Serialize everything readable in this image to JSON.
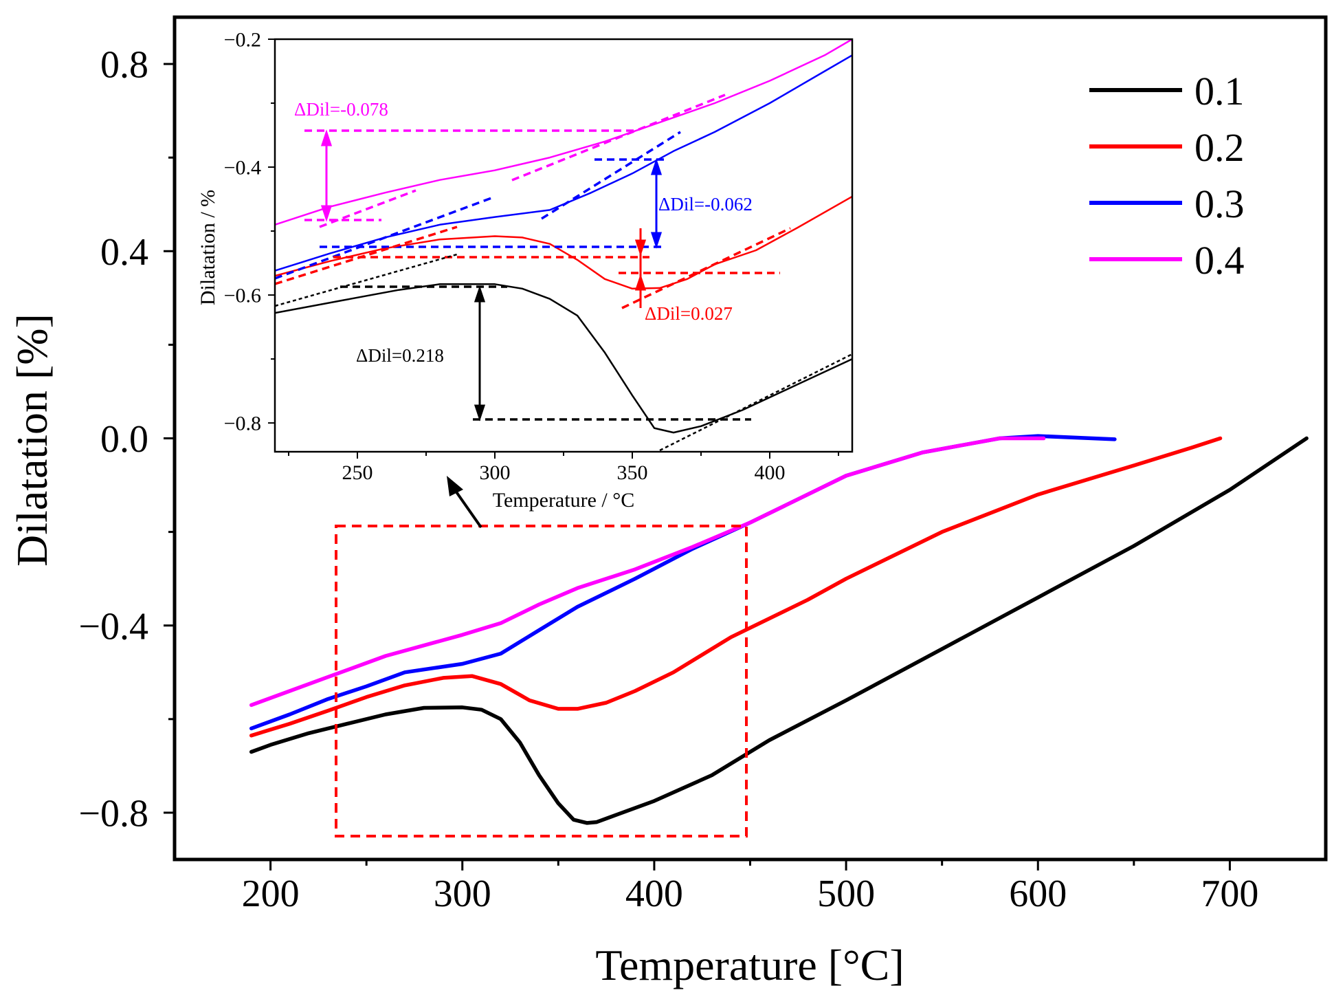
{
  "chart_data": [
    {
      "type": "line",
      "xlabel": "Temperature [°C]",
      "ylabel": "Dilatation [%]",
      "xlim": [
        150,
        750
      ],
      "ylim": [
        -0.9,
        0.9
      ],
      "x_ticks": [
        200,
        300,
        400,
        500,
        600,
        700
      ],
      "x_tick_labels": [
        "200",
        "300",
        "400",
        "500",
        "600",
        "700"
      ],
      "y_ticks": [
        -0.8,
        -0.4,
        0.0,
        0.4,
        0.8
      ],
      "y_tick_labels": [
        "−0.8",
        "−0.4",
        "0.0",
        "0.4",
        "0.8"
      ],
      "legend_position": "top-right",
      "zoom_box": {
        "x": [
          235,
          450
        ],
        "y": [
          -0.84,
          -0.19
        ]
      },
      "series": [
        {
          "name": "0.1",
          "color": "#000000",
          "points": [
            [
              190,
              -0.67
            ],
            [
              200,
              -0.655
            ],
            [
              220,
              -0.63
            ],
            [
              240,
              -0.61
            ],
            [
              260,
              -0.59
            ],
            [
              280,
              -0.576
            ],
            [
              300,
              -0.575
            ],
            [
              310,
              -0.58
            ],
            [
              320,
              -0.6
            ],
            [
              330,
              -0.65
            ],
            [
              340,
              -0.72
            ],
            [
              350,
              -0.78
            ],
            [
              358,
              -0.815
            ],
            [
              365,
              -0.822
            ],
            [
              370,
              -0.82
            ],
            [
              380,
              -0.805
            ],
            [
              400,
              -0.775
            ],
            [
              430,
              -0.72
            ],
            [
              460,
              -0.645
            ],
            [
              500,
              -0.56
            ],
            [
              550,
              -0.45
            ],
            [
              600,
              -0.34
            ],
            [
              650,
              -0.23
            ],
            [
              700,
              -0.11
            ],
            [
              740,
              0.0
            ]
          ]
        },
        {
          "name": "0.2",
          "color": "#ff0000",
          "points": [
            [
              190,
              -0.635
            ],
            [
              210,
              -0.61
            ],
            [
              230,
              -0.582
            ],
            [
              250,
              -0.553
            ],
            [
              270,
              -0.528
            ],
            [
              290,
              -0.512
            ],
            [
              305,
              -0.508
            ],
            [
              320,
              -0.525
            ],
            [
              335,
              -0.56
            ],
            [
              350,
              -0.578
            ],
            [
              360,
              -0.578
            ],
            [
              375,
              -0.565
            ],
            [
              390,
              -0.54
            ],
            [
              410,
              -0.5
            ],
            [
              440,
              -0.425
            ],
            [
              480,
              -0.345
            ],
            [
              500,
              -0.3
            ],
            [
              550,
              -0.2
            ],
            [
              600,
              -0.12
            ],
            [
              650,
              -0.058
            ],
            [
              680,
              -0.02
            ],
            [
              695,
              0.0
            ]
          ]
        },
        {
          "name": "0.3",
          "color": "#0000ff",
          "points": [
            [
              190,
              -0.62
            ],
            [
              210,
              -0.59
            ],
            [
              230,
              -0.557
            ],
            [
              250,
              -0.53
            ],
            [
              270,
              -0.5
            ],
            [
              300,
              -0.482
            ],
            [
              320,
              -0.46
            ],
            [
              340,
              -0.41
            ],
            [
              360,
              -0.36
            ],
            [
              390,
              -0.3
            ],
            [
              420,
              -0.236
            ],
            [
              450,
              -0.18
            ],
            [
              500,
              -0.08
            ],
            [
              540,
              -0.03
            ],
            [
              580,
              0.0
            ],
            [
              600,
              0.005
            ],
            [
              640,
              -0.002
            ]
          ]
        },
        {
          "name": "0.4",
          "color": "#ff00ff",
          "points": [
            [
              190,
              -0.57
            ],
            [
              210,
              -0.54
            ],
            [
              230,
              -0.51
            ],
            [
              260,
              -0.465
            ],
            [
              300,
              -0.42
            ],
            [
              320,
              -0.395
            ],
            [
              340,
              -0.355
            ],
            [
              360,
              -0.32
            ],
            [
              390,
              -0.28
            ],
            [
              420,
              -0.232
            ],
            [
              450,
              -0.18
            ],
            [
              500,
              -0.08
            ],
            [
              540,
              -0.03
            ],
            [
              580,
              0.0
            ],
            [
              603,
              0.0
            ]
          ]
        }
      ]
    },
    {
      "type": "line",
      "xlabel": "Temperature / °C",
      "ylabel": "Dilatation / %",
      "xlim": [
        220,
        430
      ],
      "ylim": [
        -0.845,
        -0.2
      ],
      "x_ticks": [
        250,
        300,
        350,
        400
      ],
      "x_tick_labels": [
        "250",
        "300",
        "350",
        "400"
      ],
      "y_ticks": [
        -0.8,
        -0.6,
        -0.4,
        -0.2
      ],
      "y_tick_labels": [
        "−0.8",
        "−0.6",
        "−0.4",
        "−0.2"
      ],
      "series": [
        {
          "name": "0.1",
          "color": "#000000",
          "points": [
            [
              220,
              -0.628
            ],
            [
              245,
              -0.608
            ],
            [
              265,
              -0.592
            ],
            [
              280,
              -0.583
            ],
            [
              300,
              -0.583
            ],
            [
              310,
              -0.59
            ],
            [
              320,
              -0.606
            ],
            [
              330,
              -0.632
            ],
            [
              340,
              -0.69
            ],
            [
              350,
              -0.757
            ],
            [
              358,
              -0.808
            ],
            [
              365,
              -0.815
            ],
            [
              375,
              -0.805
            ],
            [
              390,
              -0.78
            ],
            [
              410,
              -0.74
            ],
            [
              430,
              -0.7
            ]
          ]
        },
        {
          "name": "0.2",
          "color": "#ff0000",
          "points": [
            [
              220,
              -0.57
            ],
            [
              240,
              -0.547
            ],
            [
              260,
              -0.527
            ],
            [
              280,
              -0.513
            ],
            [
              300,
              -0.508
            ],
            [
              310,
              -0.51
            ],
            [
              320,
              -0.52
            ],
            [
              330,
              -0.545
            ],
            [
              340,
              -0.575
            ],
            [
              350,
              -0.59
            ],
            [
              360,
              -0.589
            ],
            [
              370,
              -0.575
            ],
            [
              380,
              -0.552
            ],
            [
              395,
              -0.53
            ],
            [
              410,
              -0.495
            ],
            [
              430,
              -0.446
            ]
          ]
        },
        {
          "name": "0.3",
          "color": "#0000ff",
          "points": [
            [
              220,
              -0.562
            ],
            [
              240,
              -0.535
            ],
            [
              260,
              -0.51
            ],
            [
              280,
              -0.49
            ],
            [
              300,
              -0.478
            ],
            [
              320,
              -0.467
            ],
            [
              335,
              -0.44
            ],
            [
              350,
              -0.41
            ],
            [
              365,
              -0.375
            ],
            [
              380,
              -0.345
            ],
            [
              400,
              -0.3
            ],
            [
              420,
              -0.25
            ],
            [
              430,
              -0.225
            ]
          ]
        },
        {
          "name": "0.4",
          "color": "#ff00ff",
          "points": [
            [
              220,
              -0.49
            ],
            [
              240,
              -0.462
            ],
            [
              260,
              -0.44
            ],
            [
              280,
              -0.42
            ],
            [
              300,
              -0.405
            ],
            [
              320,
              -0.385
            ],
            [
              340,
              -0.36
            ],
            [
              360,
              -0.33
            ],
            [
              380,
              -0.3
            ],
            [
              400,
              -0.265
            ],
            [
              420,
              -0.225
            ],
            [
              430,
              -0.2
            ]
          ]
        }
      ],
      "annotations": [
        {
          "label": "ΔDil=-0.078",
          "color": "#ff00ff",
          "value": -0.078
        },
        {
          "label": "ΔDil=-0.062",
          "color": "#0000ff",
          "value": -0.062
        },
        {
          "label": "ΔDil=0.027",
          "color": "#ff0000",
          "value": 0.027
        },
        {
          "label": "ΔDil=0.218",
          "color": "#000000",
          "value": 0.218
        }
      ]
    }
  ]
}
